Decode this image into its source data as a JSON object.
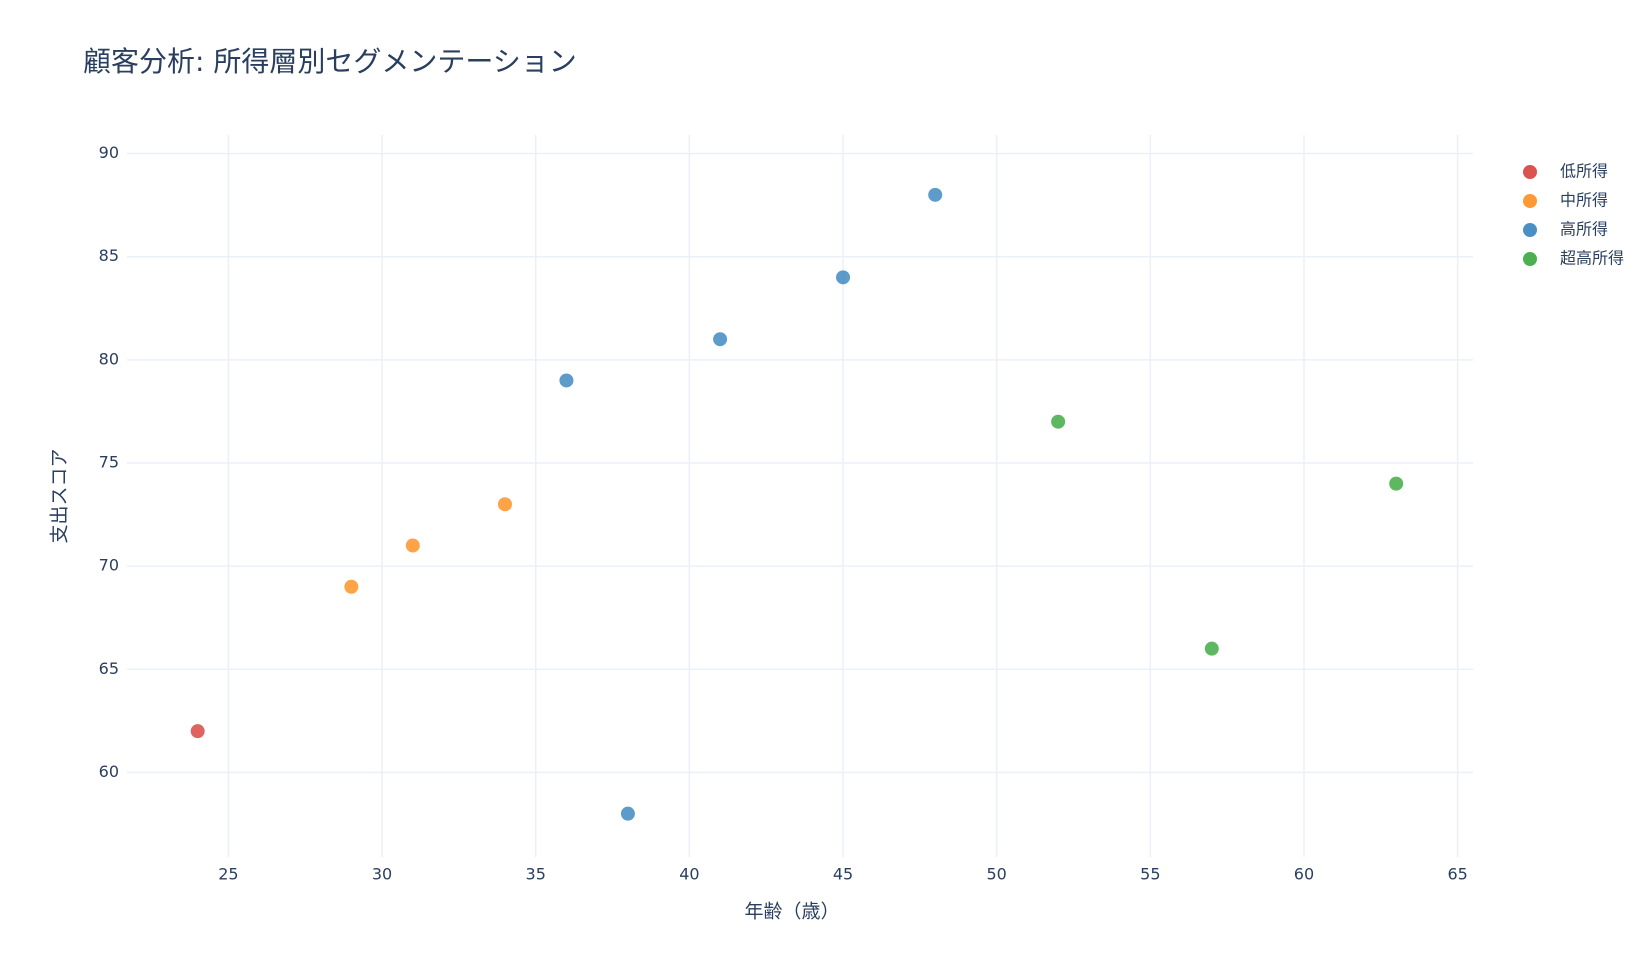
{
  "chart_data": {
    "type": "scatter",
    "title": "顧客分析: 所得層別セグメンテーション",
    "x_label": "年齢（歳）",
    "y_label": "支出スコア",
    "xlim": [
      21.7,
      65.5
    ],
    "ylim": [
      55.9,
      90.9
    ],
    "xticks": [
      25,
      30,
      35,
      40,
      45,
      50,
      55,
      60,
      65
    ],
    "yticks": [
      60,
      65,
      70,
      75,
      80,
      85,
      90
    ],
    "grid": true,
    "legend": "right",
    "series": [
      {
        "name": "低所得",
        "color": "#d9534f",
        "x": [
          24
        ],
        "values": [
          62
        ]
      },
      {
        "name": "中所得",
        "color": "#ff9933",
        "x": [
          29,
          31,
          34
        ],
        "values": [
          69,
          71,
          73
        ]
      },
      {
        "name": "高所得",
        "color": "#4a90c4",
        "x": [
          36,
          38,
          41,
          45,
          48
        ],
        "values": [
          79,
          58,
          81,
          84,
          88
        ]
      },
      {
        "name": "超高所得",
        "color": "#4caf50",
        "x": [
          52,
          57,
          63
        ],
        "values": [
          77,
          66,
          74
        ]
      }
    ]
  }
}
